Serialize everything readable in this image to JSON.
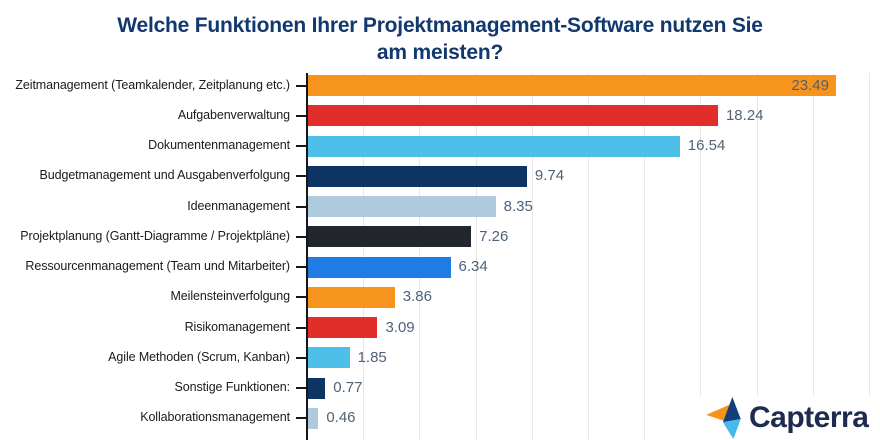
{
  "title": {
    "line1": "Welche Funktionen Ihrer Projektmanagement-Software nutzen Sie",
    "line2": "am meisten?"
  },
  "chart_data": {
    "type": "bar",
    "orientation": "horizontal",
    "title": "Welche Funktionen Ihrer Projektmanagement-Software nutzen Sie am meisten?",
    "xlabel": "",
    "ylabel": "",
    "xlim": [
      0,
      25.5
    ],
    "gridline_step": 2.5,
    "grid": true,
    "legend": "none",
    "categories": [
      "Zeitmanagement (Teamkalender, Zeitplanung etc.)",
      "Aufgabenverwaltung",
      "Dokumentenmanagement",
      "Budgetmanagement und Ausgabenverfolgung",
      "Ideenmanagement",
      "Projektplanung (Gantt-Diagramme / Projektpläne)",
      "Ressourcenmanagement (Team und Mitarbeiter)",
      "Meilensteinverfolgung",
      "Risikomanagement",
      "Agile Methoden (Scrum, Kanban)",
      "Sonstige Funktionen:",
      "Kollaborationsmanagement"
    ],
    "values": [
      23.49,
      18.24,
      16.54,
      9.74,
      8.35,
      7.26,
      6.34,
      3.86,
      3.09,
      1.85,
      0.77,
      0.46
    ],
    "value_labels": [
      "23.49",
      "18.24",
      "16.54",
      "9.74",
      "8.35",
      "7.26",
      "6.34",
      "3.86",
      "3.09",
      "1.85",
      "0.77",
      "0.46"
    ],
    "bar_colors": [
      "#F7941E",
      "#E12E2A",
      "#4DBFE8",
      "#0D3462",
      "#AFC9DD",
      "#21262F",
      "#1E7CE4",
      "#F7941E",
      "#E12E2A",
      "#4DBFE8",
      "#0D3462",
      "#AFC9DD"
    ],
    "value_label_color": "#4E6378",
    "title_color": "#12386E",
    "axis_color": "#15171C",
    "gridline_color": "#E7E7E7"
  },
  "branding": {
    "logo_text": "Capterra",
    "logo_text_color": "#1E2B4E",
    "logo_mark_colors": {
      "orange": "#F7941E",
      "navy": "#11407A",
      "light_blue": "#45B9EA"
    }
  }
}
